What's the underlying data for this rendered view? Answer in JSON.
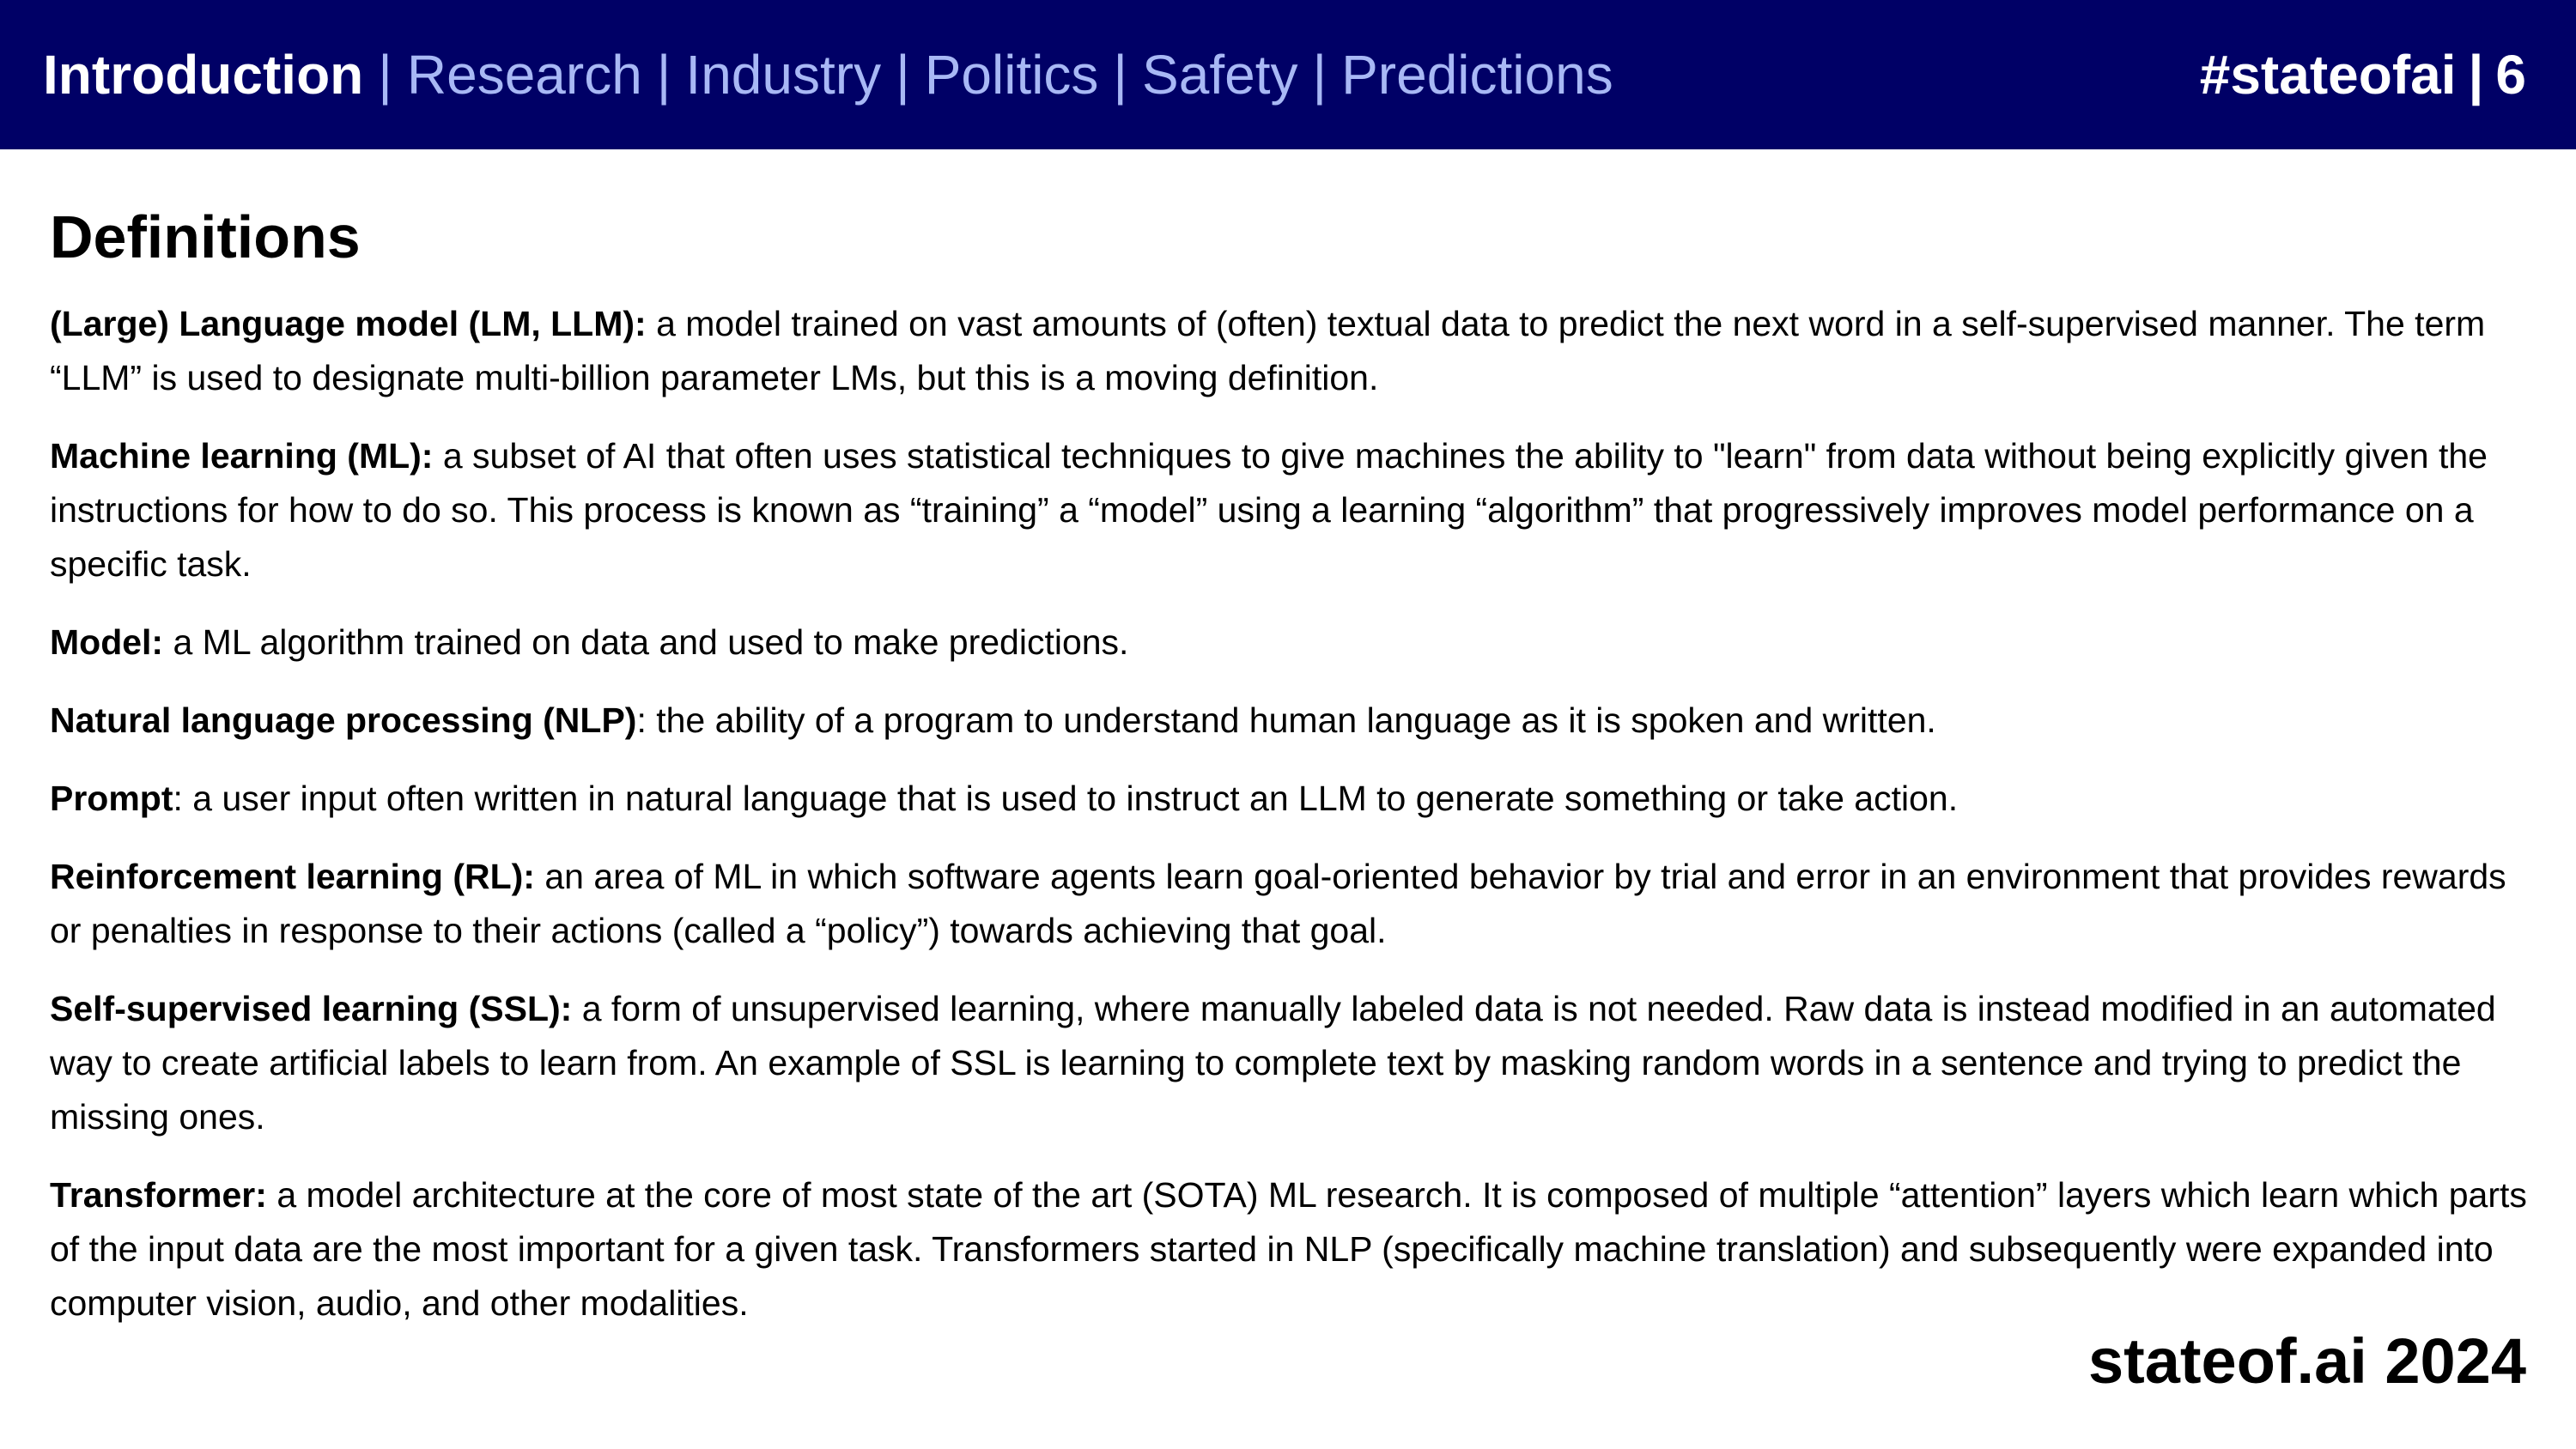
{
  "header": {
    "nav": [
      {
        "label": "Introduction",
        "active": true
      },
      {
        "label": "Research",
        "active": false
      },
      {
        "label": "Industry",
        "active": false
      },
      {
        "label": "Politics",
        "active": false
      },
      {
        "label": "Safety",
        "active": false
      },
      {
        "label": "Predictions",
        "active": false
      }
    ],
    "separator": "|",
    "hashtag": "#stateofai",
    "page_number": "6",
    "background_color": "#000066",
    "nav_color": "#a8b8f5"
  },
  "page_title": "Definitions",
  "definitions": [
    {
      "term": "(Large) Language model (LM, LLM):",
      "text": " a model trained on vast amounts of (often) textual data to predict the next word in a self-supervised manner. The term “LLM” is used to designate multi-billion parameter LMs, but this is a moving definition."
    },
    {
      "term": "Machine learning (ML):",
      "text": " a subset of AI that often uses statistical techniques to give machines the ability to \"learn\" from data without being explicitly given the instructions for how to do so. This process is known as “training” a “model” using a learning “algorithm” that progressively improves model performance on a specific task."
    },
    {
      "term": "Model:",
      "text": " a ML algorithm trained on data and used to make predictions."
    },
    {
      "term": "Natural language processing (NLP)",
      "text": ": the ability of a program to understand human language as it is spoken and written."
    },
    {
      "term": "Prompt",
      "text": ": a user input often written in natural language that is used to instruct an LLM to generate something or take action."
    },
    {
      "term": "Reinforcement learning (RL):",
      "text": " an area of ML in which software agents learn goal-oriented behavior by trial and error in an environment that provides rewards or penalties in response to their actions (called a “policy”) towards achieving that goal."
    },
    {
      "term": "Self-supervised learning (SSL):",
      "text": " a form of unsupervised learning, where manually labeled data is not needed. Raw data is instead modified in an automated way to create artificial labels to learn from. An example of SSL is learning to complete text by masking random words in a sentence and trying to predict the missing ones."
    },
    {
      "term": "Transformer:",
      "text": " a model architecture at the core of most state of the art (SOTA) ML research. It is composed of multiple “attention” layers which learn which parts of the input data are the most important for a given task. Transformers started in NLP (specifically machine translation) and subsequently were expanded into computer vision, audio, and other modalities."
    }
  ],
  "footer": {
    "brand": "stateof.ai 2024"
  }
}
